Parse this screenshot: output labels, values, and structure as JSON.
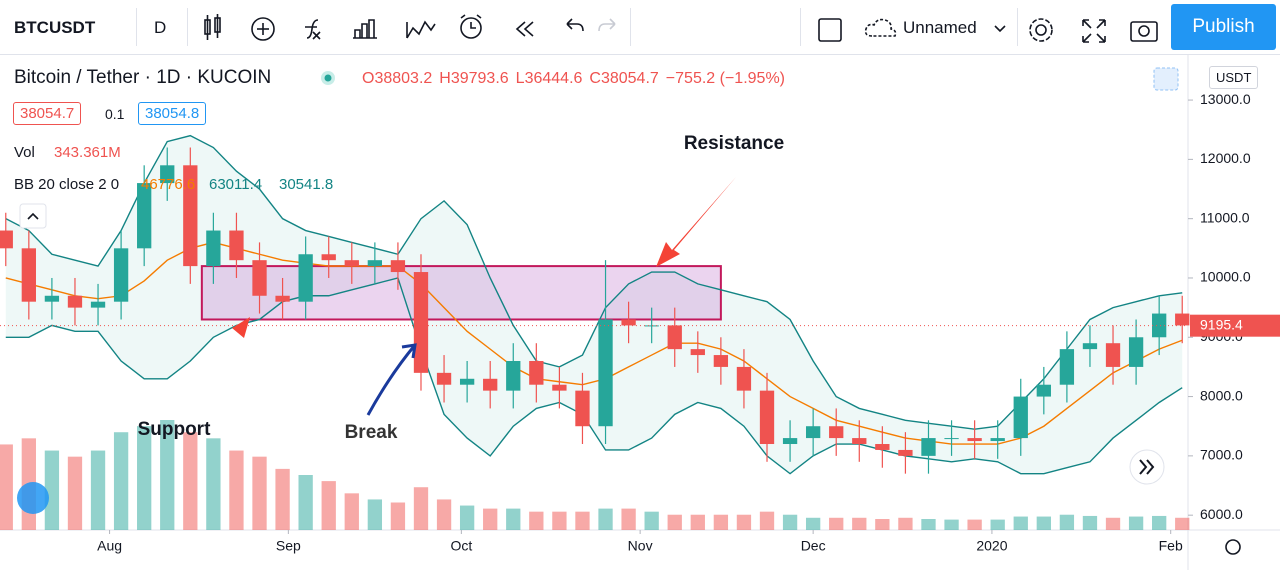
{
  "toolbar": {
    "symbol": "BTCUSDT",
    "interval": "D",
    "layout_name": "Unnamed",
    "publish": "Publish"
  },
  "legend": {
    "title": "Bitcoin / Tether · 1D · KUCOIN",
    "ohlc": [
      "O38803.2",
      "H39793.6",
      "L36444.6",
      "C38054.7",
      "−755.2 (−1.95%)"
    ],
    "sell": "38054.7",
    "spread": "0.1",
    "buy": "38054.8",
    "vol_label": "Vol",
    "vol_value": "343.361M",
    "bb_label": "BB 20 close 2 0",
    "bb_values": [
      "46776.6",
      "63011.4",
      "30541.8"
    ],
    "currency": "USDT"
  },
  "chart_data": {
    "type": "candlestick",
    "annotations": {
      "resistance": "Resistance",
      "support": "Support",
      "break": "Break"
    },
    "zone": {
      "x": [
        16,
        106
      ],
      "y": [
        9300,
        10200
      ],
      "color": "#c2185b"
    },
    "x": [
      -18,
      -14,
      -10,
      -6,
      -2,
      2,
      6,
      10,
      14,
      18,
      22,
      26,
      30,
      34,
      38,
      42,
      46,
      50,
      54,
      58,
      62,
      66,
      70,
      74,
      78,
      82,
      86,
      90,
      94,
      98,
      102,
      106,
      110,
      114,
      118,
      122,
      126,
      130,
      134,
      138,
      142,
      146,
      150,
      154,
      158,
      162,
      166,
      170,
      174,
      178,
      182,
      186
    ],
    "xlim": [
      -19,
      187
    ],
    "xticks": [
      {
        "value": 0,
        "label": "Aug"
      },
      {
        "value": 31,
        "label": "Sep"
      },
      {
        "value": 61,
        "label": "Oct"
      },
      {
        "value": 92,
        "label": "Nov"
      },
      {
        "value": 122,
        "label": "Dec"
      },
      {
        "value": 153,
        "label": "2020"
      },
      {
        "value": 184,
        "label": "Feb"
      }
    ],
    "ylim": [
      5750,
      13760
    ],
    "yticks": [
      {
        "value": 6000,
        "label": "6000.0"
      },
      {
        "value": 7000,
        "label": "7000.0"
      },
      {
        "value": 8000,
        "label": "8000.0"
      },
      {
        "value": 9000,
        "label": "9000.0"
      },
      {
        "value": 10000,
        "label": "10000.0"
      },
      {
        "value": 11000,
        "label": "11000.0"
      },
      {
        "value": 12000,
        "label": "12000.0"
      },
      {
        "value": 13000,
        "label": "13000.0"
      }
    ],
    "last_price": {
      "value": 9195.4,
      "label": "9195.4"
    },
    "up_color": "#26a69a",
    "down_color": "#ef5350",
    "candles": {
      "open": [
        10800,
        10500,
        9600,
        9700,
        9500,
        9600,
        10500,
        11600,
        11900,
        10200,
        10800,
        10300,
        9700,
        9600,
        10400,
        10300,
        10200,
        10300,
        10100,
        8400,
        8200,
        8300,
        8100,
        8600,
        8200,
        8100,
        7500,
        9300,
        9200,
        9200,
        8800,
        8700,
        8500,
        8100,
        7200,
        7300,
        7500,
        7300,
        7200,
        7100,
        7000,
        7300,
        7300,
        7250,
        7300,
        8000,
        8200,
        8800,
        8900,
        8500,
        9000,
        9400
      ],
      "high": [
        11100,
        10800,
        10000,
        10000,
        9900,
        10800,
        11900,
        12200,
        12200,
        11100,
        11100,
        10600,
        10000,
        10700,
        10700,
        10600,
        10600,
        10600,
        10400,
        8700,
        8600,
        8600,
        8900,
        8900,
        8500,
        8400,
        10300,
        9600,
        9500,
        9500,
        9100,
        9000,
        8800,
        8400,
        7600,
        7800,
        7800,
        7600,
        7500,
        7400,
        7600,
        7600,
        7600,
        7600,
        8300,
        8500,
        9100,
        9200,
        9200,
        9300,
        9700,
        9700
      ],
      "low": [
        10200,
        9300,
        9300,
        9200,
        9200,
        9300,
        10200,
        11300,
        9900,
        9900,
        10000,
        9400,
        9300,
        9300,
        10000,
        9900,
        9900,
        9800,
        8100,
        7900,
        7900,
        7800,
        7800,
        7900,
        7800,
        7200,
        7200,
        8900,
        8900,
        8500,
        8400,
        8200,
        7800,
        6900,
        6900,
        7000,
        7000,
        6900,
        6800,
        6700,
        6700,
        7000,
        6950,
        6950,
        7000,
        7700,
        7900,
        8500,
        8200,
        8200,
        8700,
        8900
      ],
      "close": [
        10500,
        9600,
        9700,
        9500,
        9600,
        10500,
        11600,
        11900,
        10200,
        10800,
        10300,
        9700,
        9600,
        10400,
        10300,
        10200,
        10300,
        10100,
        8400,
        8200,
        8300,
        8100,
        8600,
        8200,
        8100,
        7500,
        9300,
        9200,
        9200,
        8800,
        8700,
        8500,
        8100,
        7200,
        7300,
        7500,
        7300,
        7200,
        7100,
        7000,
        7300,
        7300,
        7250,
        7300,
        8000,
        8200,
        8800,
        8900,
        8500,
        9000,
        9400,
        9200
      ]
    },
    "volume": [
      1400,
      1500,
      1300,
      1200,
      1300,
      1600,
      1700,
      1800,
      1600,
      1500,
      1300,
      1200,
      1000,
      900,
      800,
      600,
      500,
      450,
      700,
      500,
      400,
      350,
      350,
      300,
      300,
      300,
      350,
      350,
      300,
      250,
      250,
      250,
      250,
      300,
      250,
      200,
      200,
      200,
      180,
      200,
      180,
      170,
      170,
      170,
      220,
      220,
      250,
      230,
      200,
      220,
      230,
      200
    ],
    "bb": {
      "upper": {
        "color": "#138484",
        "values": [
          11000,
          10800,
          10400,
          10300,
          10200,
          10800,
          11600,
          12300,
          12400,
          12200,
          11800,
          11500,
          11000,
          10800,
          10700,
          10600,
          10500,
          10400,
          11000,
          11300,
          10900,
          10000,
          9200,
          8600,
          8500,
          8700,
          9500,
          9900,
          10100,
          10100,
          9900,
          9800,
          9700,
          9600,
          9300,
          8600,
          8000,
          7800,
          7700,
          7600,
          7550,
          7500,
          7450,
          7500,
          7900,
          8300,
          8800,
          9300,
          9500,
          9600,
          9700,
          9750
        ]
      },
      "middle": {
        "color": "#f57c00",
        "values": [
          10000,
          9900,
          9800,
          9700,
          9650,
          9700,
          9950,
          10300,
          10500,
          10600,
          10500,
          10400,
          10300,
          10250,
          10200,
          10200,
          10200,
          10200,
          9900,
          9500,
          9100,
          8800,
          8500,
          8300,
          8250,
          8200,
          8300,
          8500,
          8700,
          8900,
          8900,
          8800,
          8600,
          8300,
          8000,
          7800,
          7600,
          7500,
          7400,
          7300,
          7250,
          7200,
          7200,
          7200,
          7300,
          7500,
          7800,
          8100,
          8400,
          8600,
          8800,
          8950
        ]
      },
      "lower": {
        "color": "#138484",
        "values": [
          9000,
          9000,
          9200,
          9100,
          9100,
          8600,
          8300,
          8300,
          8600,
          9000,
          9200,
          9300,
          9600,
          9700,
          9700,
          9800,
          9900,
          10000,
          8800,
          7700,
          7300,
          7000,
          7500,
          7800,
          7900,
          7700,
          7100,
          7100,
          7300,
          7700,
          7900,
          7800,
          7500,
          7000,
          6700,
          7000,
          7200,
          7200,
          7100,
          7000,
          6950,
          6900,
          6950,
          6900,
          6700,
          6700,
          6800,
          6900,
          7300,
          7600,
          7900,
          8150
        ]
      }
    }
  }
}
